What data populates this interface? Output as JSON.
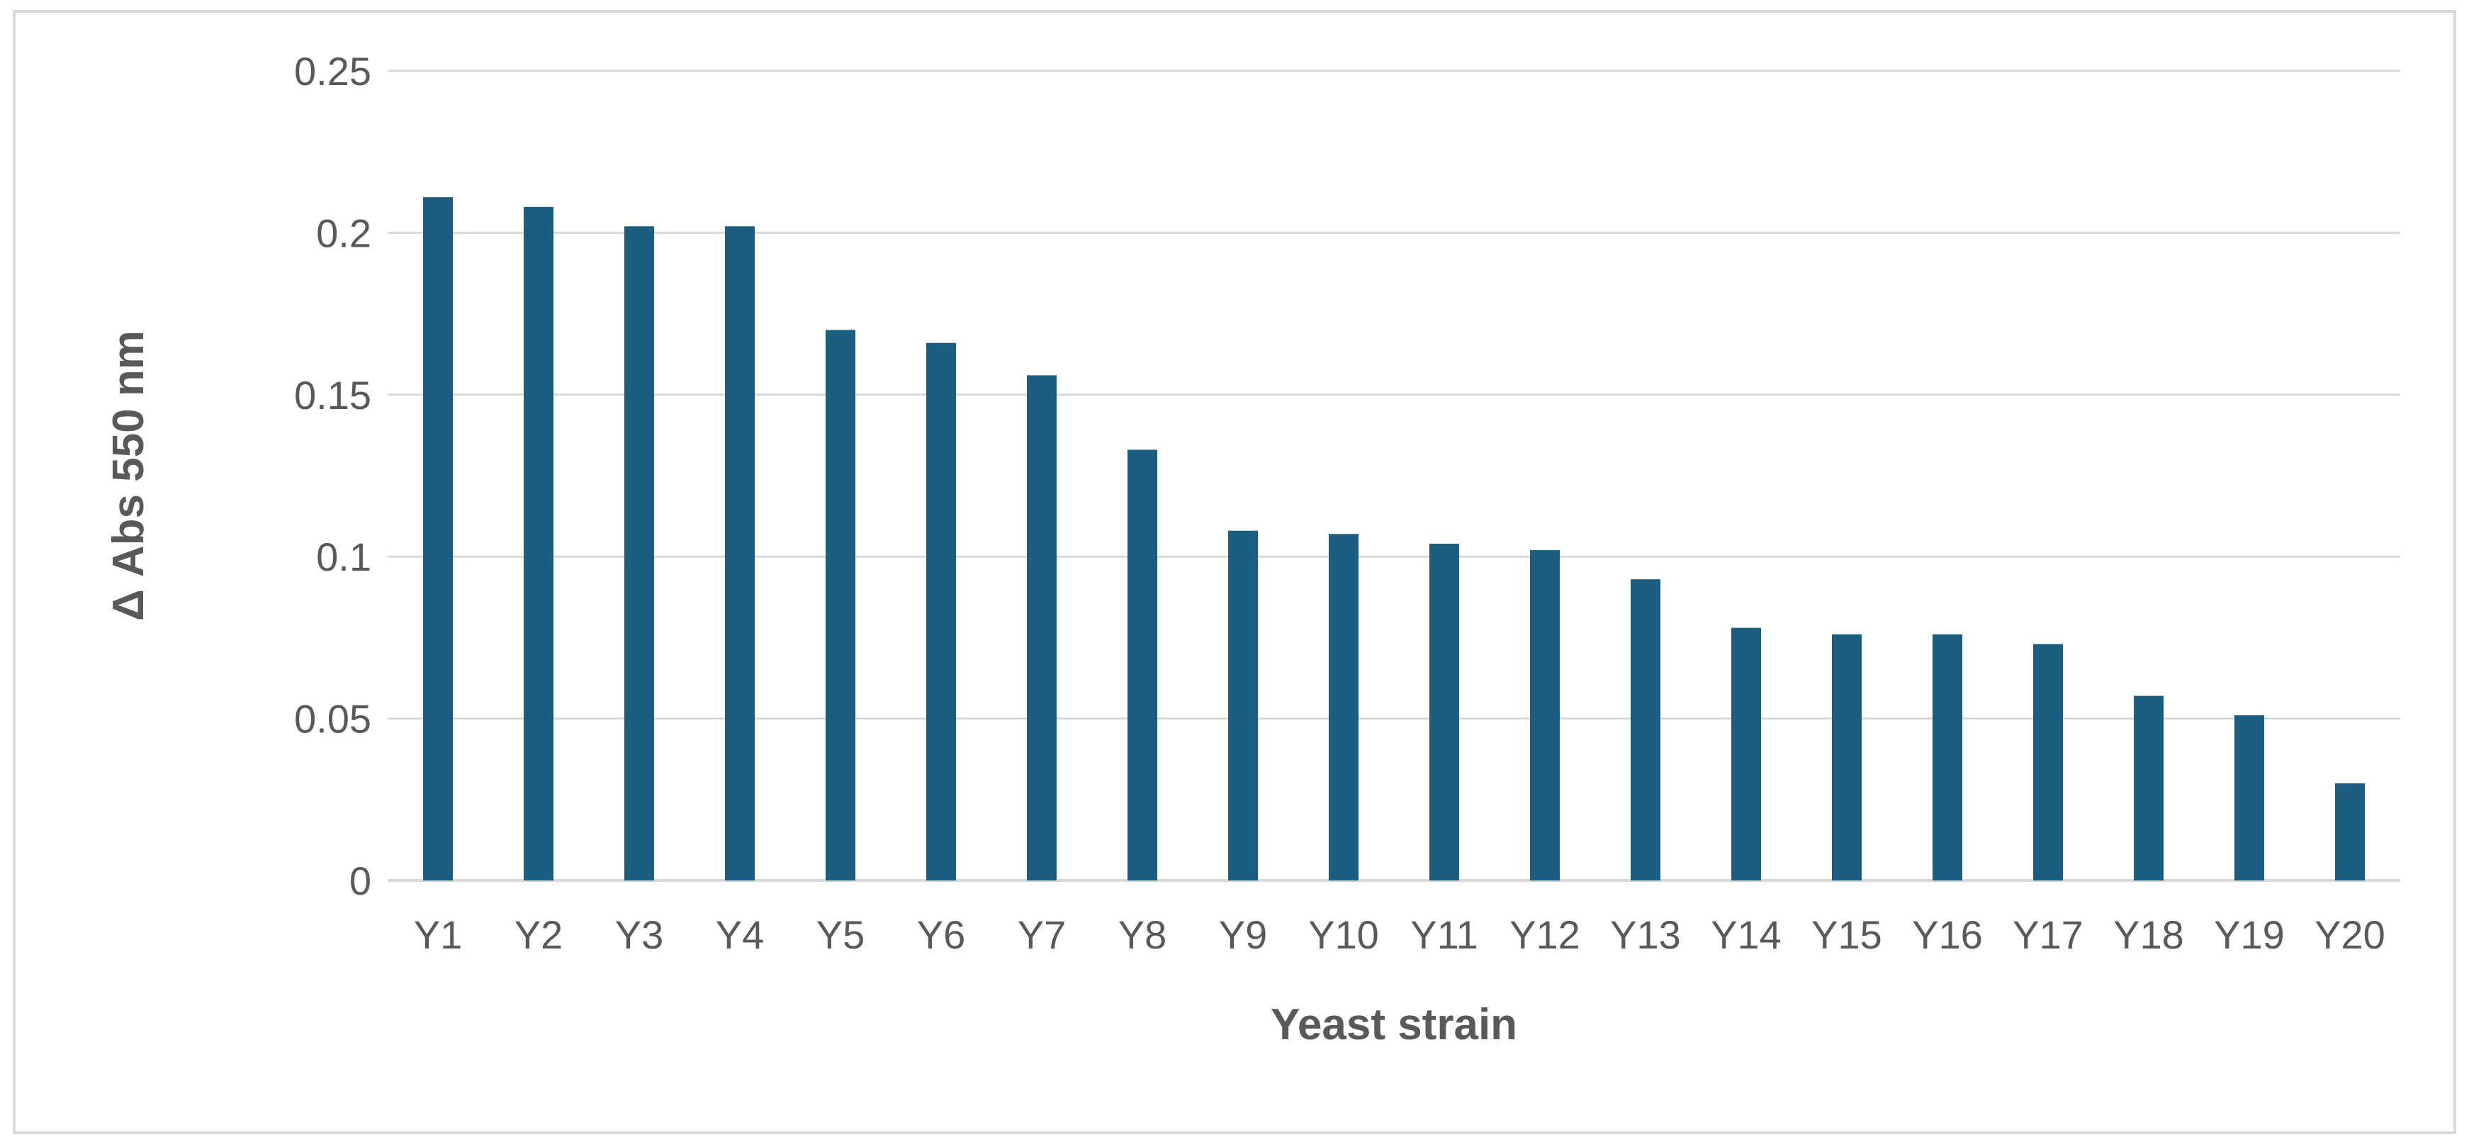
{
  "chart_data": {
    "type": "bar",
    "title": "",
    "xlabel": "Yeast strain",
    "ylabel": "Δ Abs 550 nm",
    "categories": [
      "Y1",
      "Y2",
      "Y3",
      "Y4",
      "Y5",
      "Y6",
      "Y7",
      "Y8",
      "Y9",
      "Y10",
      "Y11",
      "Y12",
      "Y13",
      "Y14",
      "Y15",
      "Y16",
      "Y17",
      "Y18",
      "Y19",
      "Y20"
    ],
    "values": [
      0.211,
      0.208,
      0.202,
      0.202,
      0.17,
      0.166,
      0.156,
      0.133,
      0.108,
      0.107,
      0.104,
      0.102,
      0.093,
      0.078,
      0.076,
      0.076,
      0.073,
      0.057,
      0.051,
      0.03
    ],
    "ylim": [
      0,
      0.25
    ],
    "yticks": [
      0,
      0.05,
      0.1,
      0.15,
      0.2,
      0.25
    ],
    "ytick_labels": [
      "0",
      "0.05",
      "0.1",
      "0.15",
      "0.2",
      "0.25"
    ],
    "grid": true,
    "legend": "none",
    "bar_color": "#1b5e82",
    "grid_color": "#d9d9d9",
    "text_color": "#595959"
  }
}
